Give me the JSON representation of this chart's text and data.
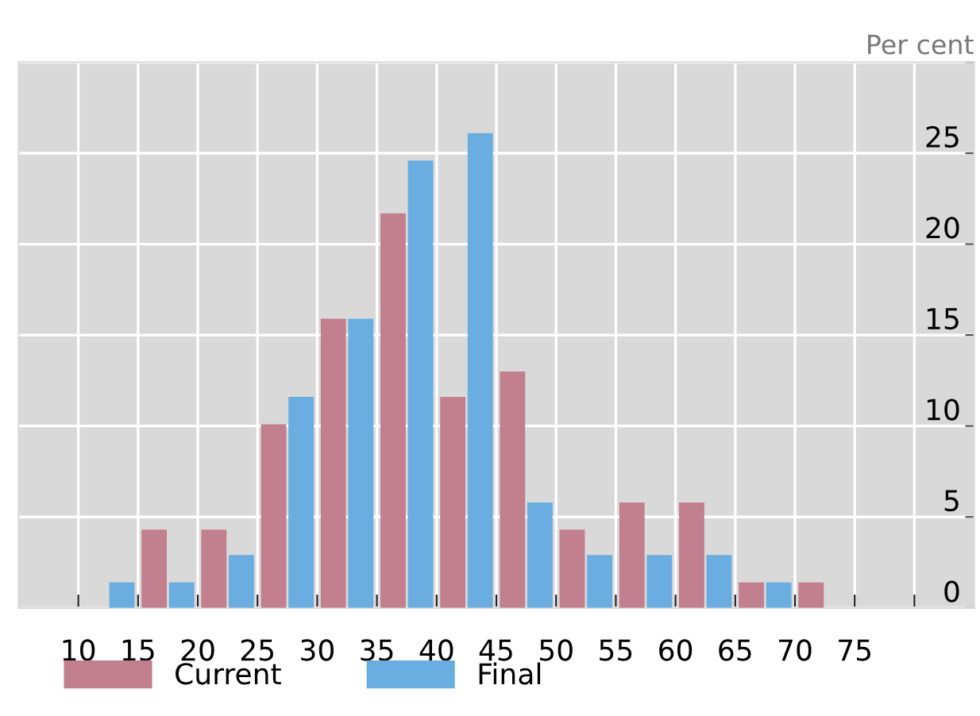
{
  "chart_data": {
    "type": "histogram",
    "ylabel": "Per cent",
    "bins": [
      5,
      10,
      15,
      20,
      25,
      30,
      35,
      40,
      45,
      50,
      55,
      60,
      65,
      70,
      75,
      80,
      85
    ],
    "series": [
      {
        "name": "Current",
        "color": "#c27f8e",
        "values": [
          0,
          0,
          4.3,
          4.3,
          10.1,
          15.9,
          21.7,
          11.6,
          13.0,
          4.3,
          5.8,
          5.8,
          1.4,
          1.4,
          0,
          0
        ]
      },
      {
        "name": "Final",
        "color": "#6aade0",
        "values": [
          0,
          1.4,
          1.4,
          2.9,
          11.6,
          15.9,
          24.6,
          26.1,
          5.8,
          2.9,
          2.9,
          2.9,
          1.4,
          0,
          0,
          0
        ]
      }
    ],
    "xlim": [
      5,
      85
    ],
    "xticks": [
      10,
      15,
      20,
      25,
      30,
      35,
      40,
      45,
      50,
      55,
      60,
      65,
      70,
      75,
      {
        "value": 80,
        "label": null
      }
    ],
    "ylim": [
      0,
      30
    ],
    "yticks": [
      0,
      5,
      10,
      15,
      20,
      25,
      {
        "value": 30,
        "label": null
      }
    ],
    "grid": true,
    "legend": "bottom left"
  }
}
